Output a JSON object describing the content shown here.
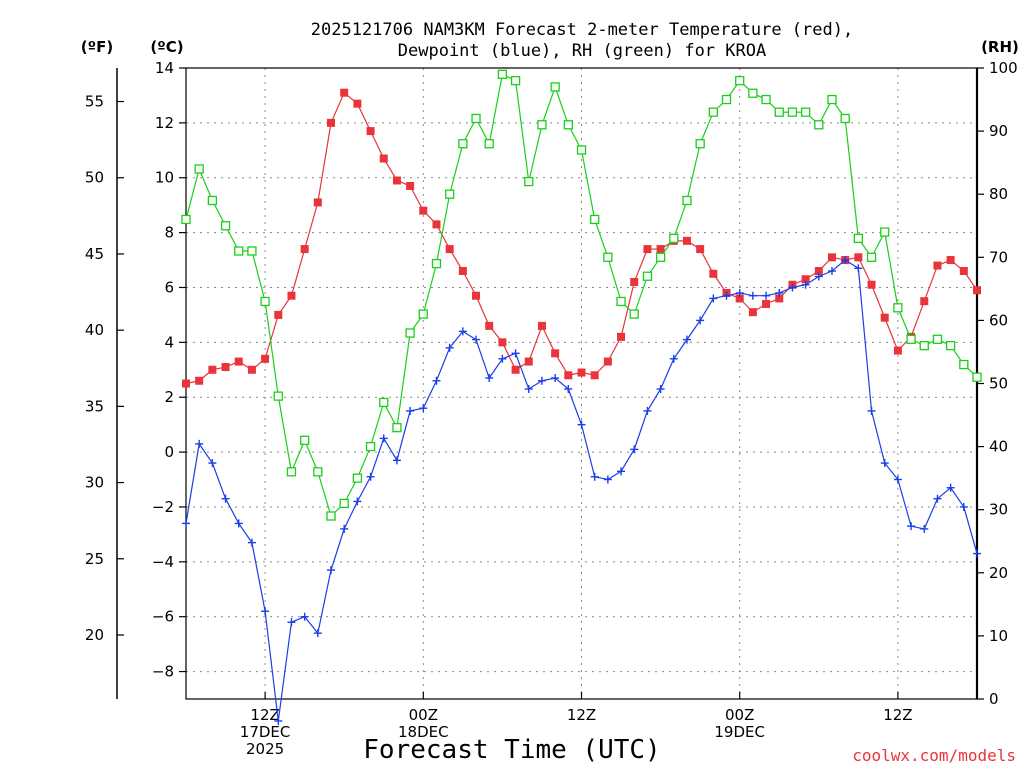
{
  "title_line1": "2025121706 NAM3KM Forecast 2-meter Temperature (red),",
  "title_line2": "Dewpoint (blue), RH (green) for KROA",
  "units": {
    "f": "(ºF)",
    "c": "(ºC)",
    "rh": "(RH)"
  },
  "x_axis_label": "Forecast Time (UTC)",
  "x_ticks": [
    {
      "hour": 6,
      "label1": "12Z",
      "label2": "17DEC",
      "label3": "2025"
    },
    {
      "hour": 18,
      "label1": "00Z",
      "label2": "18DEC",
      "label3": ""
    },
    {
      "hour": 30,
      "label1": "12Z",
      "label2": "",
      "label3": ""
    },
    {
      "hour": 42,
      "label1": "00Z",
      "label2": "19DEC",
      "label3": ""
    },
    {
      "hour": 54,
      "label1": "12Z",
      "label2": "",
      "label3": ""
    }
  ],
  "credit": "coolwx.com/models",
  "colors": {
    "temperature": "#e8343a",
    "dewpoint": "#1a3ee8",
    "rh": "#18d018"
  },
  "chart_data": {
    "type": "line",
    "title": "2025121706 NAM3KM Forecast 2-meter Temperature (red), Dewpoint (blue), RH (green) for KROA",
    "xlabel": "Forecast Time (UTC)",
    "x_unit": "forecast hour from 2025-12-17 06Z",
    "xlim": [
      0,
      60
    ],
    "ylim_c": [
      -9,
      14
    ],
    "ylim_rh": [
      0,
      100
    ],
    "y_ticks_c": [
      -8,
      -6,
      -4,
      -2,
      0,
      2,
      4,
      6,
      8,
      10,
      12,
      14
    ],
    "y_tick_labels_c": [
      "−8",
      "−6",
      "−4",
      "−2",
      "0",
      "2",
      "4",
      "6",
      "8",
      "10",
      "12",
      "14"
    ],
    "y_ticks_f": [
      20,
      25,
      30,
      35,
      40,
      45,
      50,
      55
    ],
    "y_tick_labels_f": [
      "20",
      "25",
      "30",
      "35",
      "40",
      "45",
      "50",
      "55"
    ],
    "y_ticks_rh": [
      0,
      10,
      20,
      30,
      40,
      50,
      60,
      70,
      80,
      90,
      100
    ],
    "y_tick_labels_rh": [
      "0",
      "10",
      "20",
      "30",
      "40",
      "50",
      "60",
      "70",
      "80",
      "90",
      "100"
    ],
    "x": [
      0,
      1,
      2,
      3,
      4,
      5,
      6,
      7,
      8,
      9,
      10,
      11,
      12,
      13,
      14,
      15,
      16,
      17,
      18,
      19,
      20,
      21,
      22,
      23,
      24,
      25,
      26,
      27,
      28,
      29,
      30,
      31,
      32,
      33,
      34,
      35,
      36,
      37,
      38,
      39,
      40,
      41,
      42,
      43,
      44,
      45,
      46,
      47,
      48,
      49,
      50,
      51,
      52,
      53,
      54,
      55,
      56,
      57,
      58,
      59,
      60
    ],
    "series": [
      {
        "name": "2-meter Temperature",
        "unit": "°C",
        "color": "#e8343a",
        "marker": "filled-square",
        "values": [
          2.5,
          2.6,
          3.0,
          3.1,
          3.3,
          3.0,
          3.4,
          5.0,
          5.7,
          7.4,
          9.1,
          12.0,
          13.1,
          12.7,
          11.7,
          10.7,
          9.9,
          9.7,
          8.8,
          8.3,
          7.4,
          6.6,
          5.7,
          4.6,
          4.0,
          3.0,
          3.3,
          4.6,
          3.6,
          2.8,
          2.9,
          2.8,
          3.3,
          4.2,
          6.2,
          7.4,
          7.4,
          7.7,
          7.7,
          7.4,
          6.5,
          5.8,
          5.6,
          5.1,
          5.4,
          5.6,
          6.1,
          6.3,
          6.6,
          7.1,
          7.0,
          7.1,
          6.1,
          4.9,
          3.7,
          4.2,
          5.5,
          6.8,
          7.0,
          6.6,
          5.9
        ]
      },
      {
        "name": "Dewpoint",
        "unit": "°C",
        "color": "#1a3ee8",
        "marker": "plus",
        "values": [
          -2.6,
          0.3,
          -0.4,
          -1.7,
          -2.6,
          -3.3,
          -5.8,
          -9.8,
          -6.2,
          -6.0,
          -6.6,
          -4.3,
          -2.8,
          -1.8,
          -0.9,
          0.5,
          -0.3,
          1.5,
          1.6,
          2.6,
          3.8,
          4.4,
          4.1,
          2.7,
          3.4,
          3.6,
          2.3,
          2.6,
          2.7,
          2.3,
          1.0,
          -0.9,
          -1.0,
          -0.7,
          0.1,
          1.5,
          2.3,
          3.4,
          4.1,
          4.8,
          5.6,
          5.7,
          5.8,
          5.7,
          5.7,
          5.8,
          6.0,
          6.1,
          6.4,
          6.6,
          7.0,
          6.7,
          1.5,
          -0.4,
          -1.0,
          -2.7,
          -2.8,
          -1.7,
          -1.3,
          -2.0,
          -3.7
        ]
      },
      {
        "name": "RH",
        "unit": "%",
        "color": "#18d018",
        "marker": "open-square",
        "values": [
          76,
          84,
          79,
          75,
          71,
          71,
          63,
          48,
          36,
          41,
          36,
          29,
          31,
          35,
          40,
          47,
          43,
          58,
          61,
          69,
          80,
          88,
          92,
          88,
          99,
          98,
          82,
          91,
          97,
          91,
          87,
          76,
          70,
          63,
          61,
          67,
          70,
          73,
          79,
          88,
          93,
          95,
          98,
          96,
          95,
          93,
          93,
          93,
          91,
          95,
          92,
          73,
          70,
          74,
          62,
          57,
          56,
          57,
          56,
          53,
          51
        ]
      }
    ]
  }
}
